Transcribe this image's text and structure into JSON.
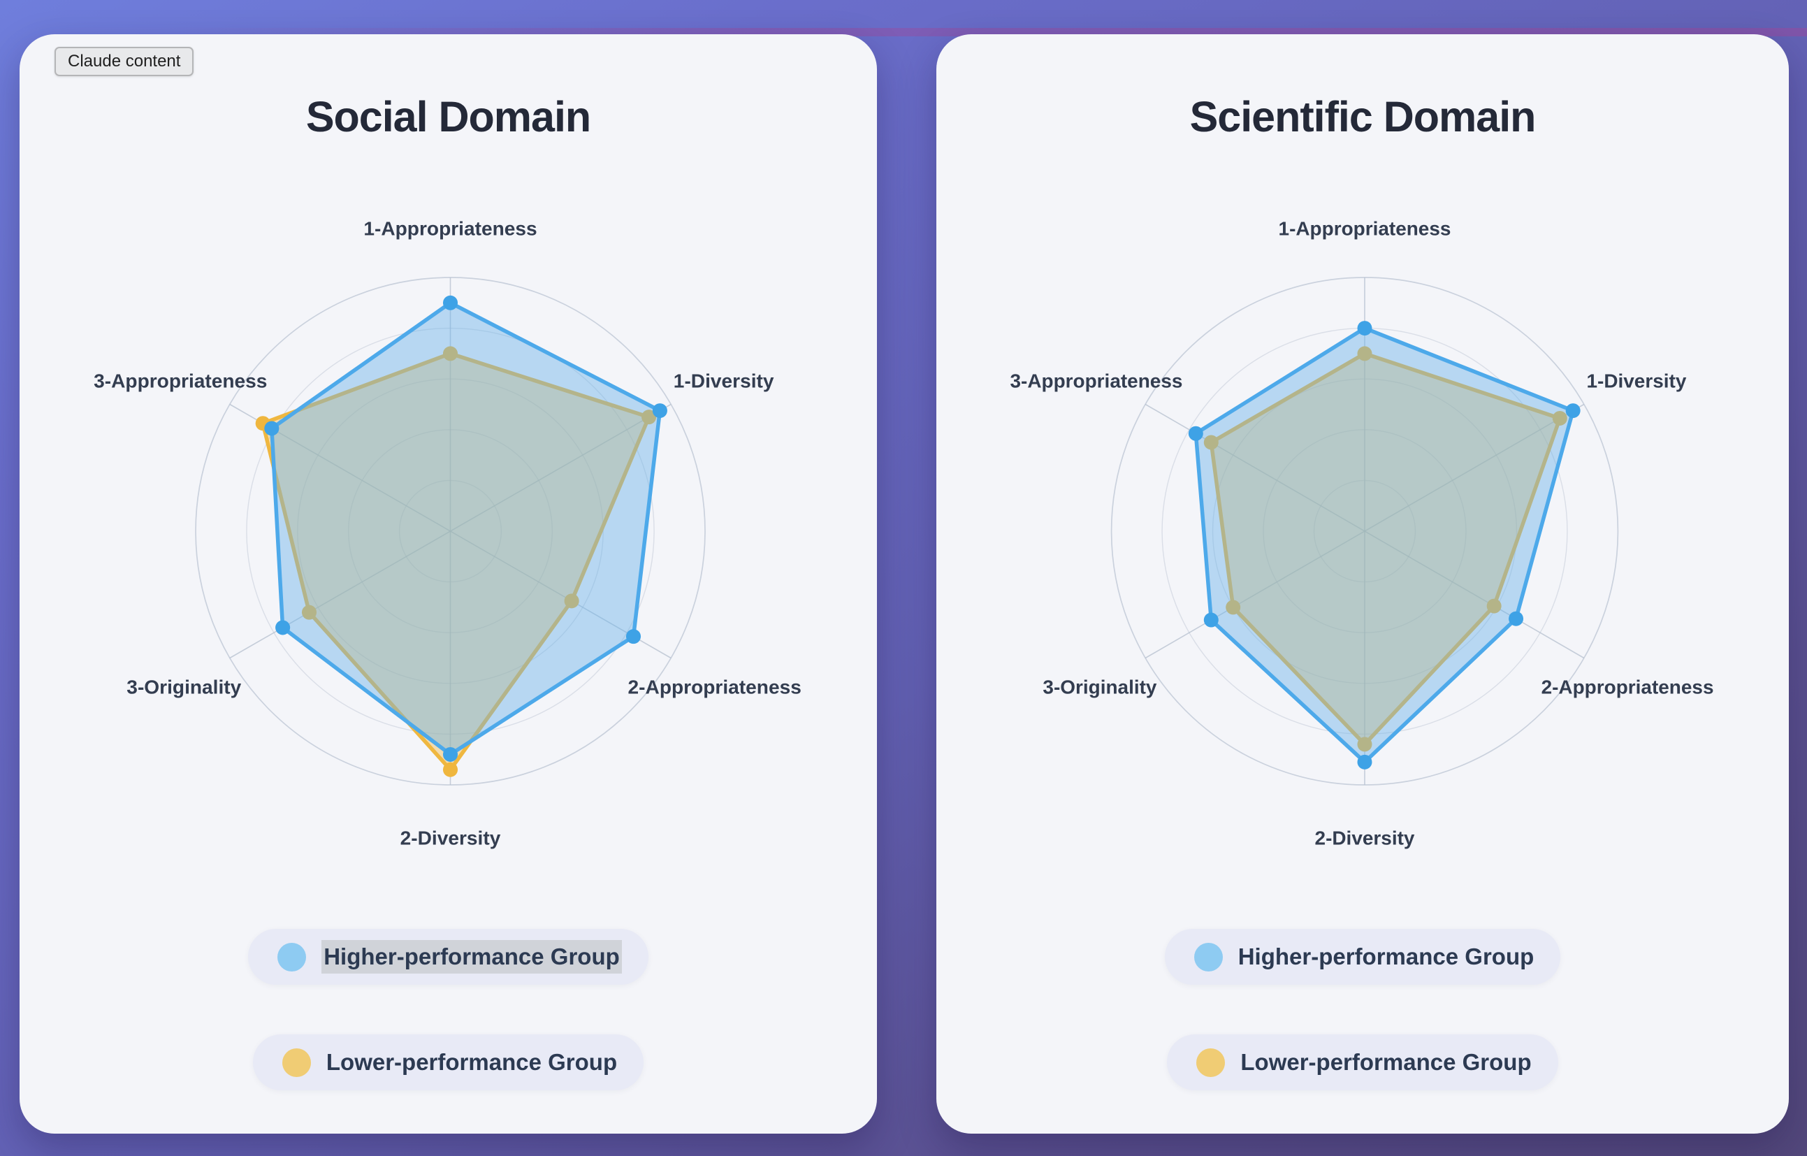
{
  "badge": {
    "label": "Claude content"
  },
  "colors": {
    "background_top": "#6f7edc",
    "background_bottom": "#53487b",
    "accent_streak": "#8a4f9b",
    "card_bg": "#f4f5f9",
    "title_color": "#242938",
    "axis_label_color": "#333d50",
    "grid_color": "#bfc8d6",
    "legend_pill_bg": "#e8eaf6",
    "legend_text_color": "#2c3a52",
    "selection_color": "#d0d3d9",
    "higher_group_blue": "#4da9ea",
    "lower_group_gold": "#efb740"
  },
  "chart_data": [
    {
      "type": "radar",
      "title": "Social Domain",
      "categories": [
        "1-Appropriateness",
        "1-Diversity",
        "2-Appropriateness",
        "2-Diversity",
        "3-Originality",
        "3-Appropriateness"
      ],
      "series": [
        {
          "name": "Higher-performance Group",
          "values": [
            0.9,
            0.95,
            0.83,
            0.88,
            0.76,
            0.81
          ],
          "line_color": "#4da9ea",
          "fill_color": "rgba(105,178,232,0.44)",
          "dot_color": "#3ea2e6",
          "legend_dot_color": "#8ecbf2",
          "text_selected": true
        },
        {
          "name": "Lower-performance Group",
          "values": [
            0.7,
            0.9,
            0.55,
            0.94,
            0.64,
            0.85
          ],
          "line_color": "#efb740",
          "fill_color": "rgba(238,183,74,0.42)",
          "dot_color": "#efb63e",
          "legend_dot_color": "#f0cc74",
          "text_selected": false
        }
      ],
      "rlim": [
        0,
        1
      ],
      "grid_rings": 5,
      "grid": "on",
      "legend_position": "bottom"
    },
    {
      "type": "radar",
      "title": "Scientific Domain",
      "categories": [
        "1-Appropriateness",
        "1-Diversity",
        "2-Appropriateness",
        "2-Diversity",
        "3-Originality",
        "3-Appropriateness"
      ],
      "series": [
        {
          "name": "Higher-performance Group",
          "values": [
            0.8,
            0.95,
            0.69,
            0.91,
            0.7,
            0.77
          ],
          "line_color": "#4da9ea",
          "fill_color": "rgba(105,178,232,0.44)",
          "dot_color": "#3ea2e6",
          "legend_dot_color": "#8ecbf2",
          "text_selected": false
        },
        {
          "name": "Lower-performance Group",
          "values": [
            0.7,
            0.89,
            0.59,
            0.84,
            0.6,
            0.7
          ],
          "line_color": "#efb740",
          "fill_color": "rgba(238,183,74,0.42)",
          "dot_color": "#efb63e",
          "legend_dot_color": "#f0cc74",
          "text_selected": false
        }
      ],
      "rlim": [
        0,
        1
      ],
      "grid_rings": 5,
      "grid": "on",
      "legend_position": "bottom"
    }
  ]
}
